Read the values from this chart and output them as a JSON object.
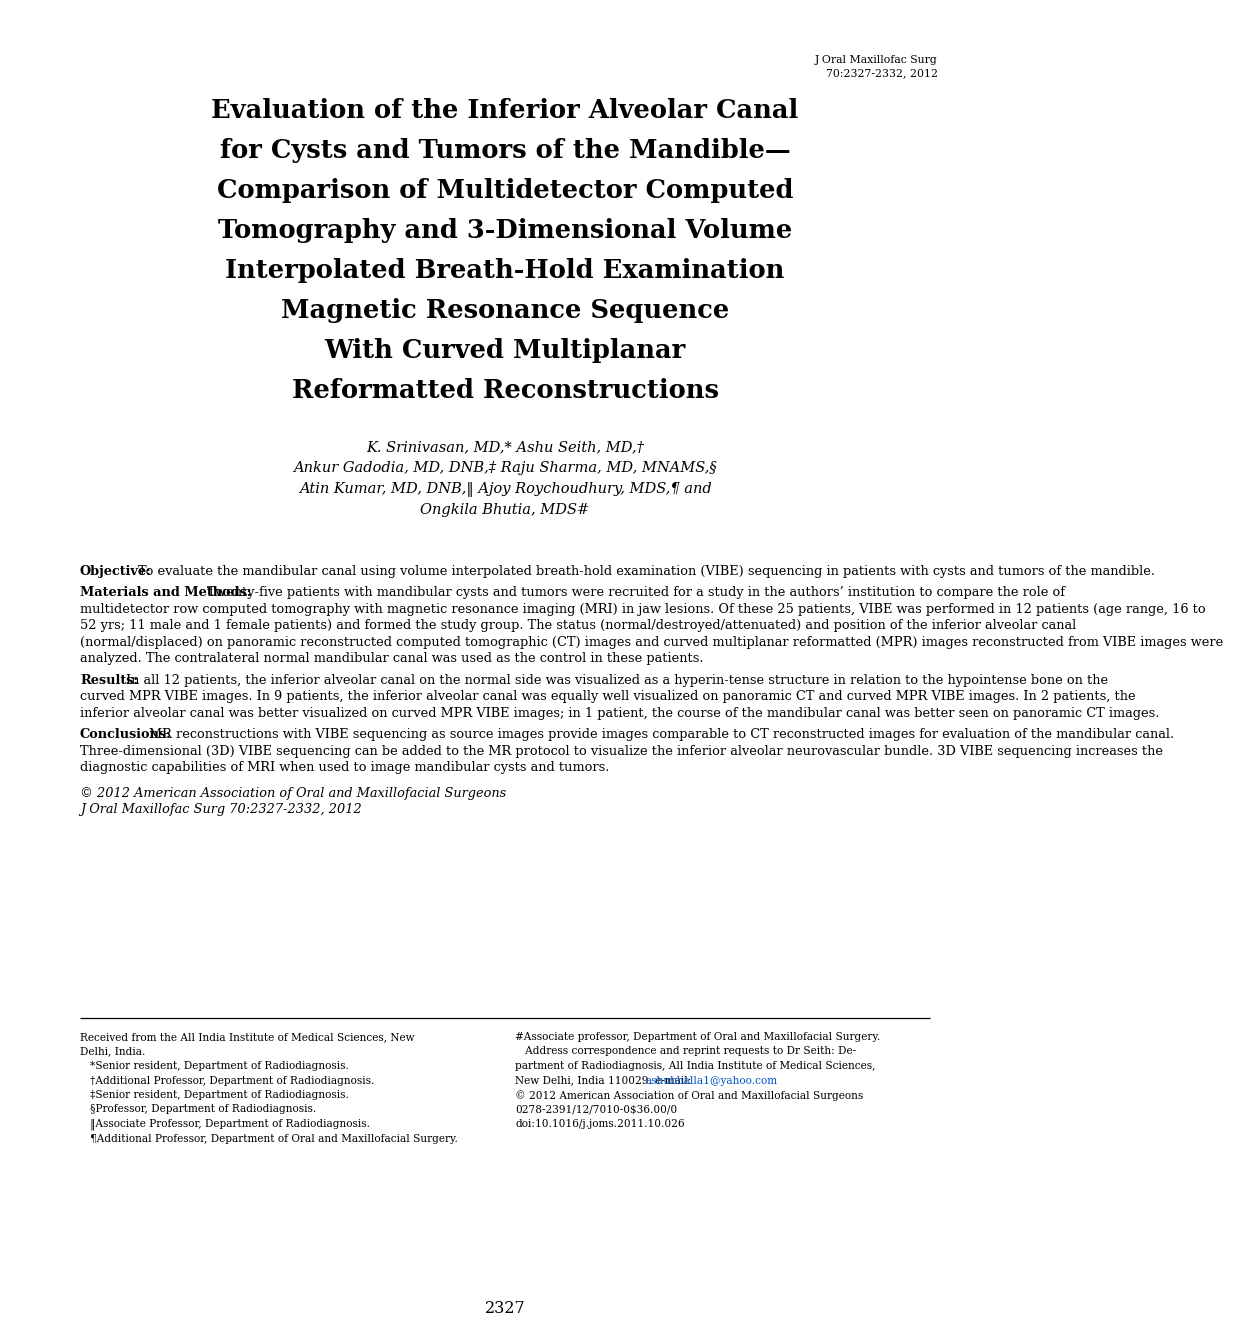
{
  "journal_ref_line1": "J Oral Maxillofac Surg",
  "journal_ref_line2": "70:2327-2332, 2012",
  "title_lines": [
    "Evaluation of the Inferior Alveolar Canal",
    "for Cysts and Tumors of the Mandible—",
    "Comparison of Multidetector Computed",
    "Tomography and 3-Dimensional Volume",
    "Interpolated Breath-Hold Examination",
    "Magnetic Resonance Sequence",
    "With Curved Multiplanar",
    "Reformatted Reconstructions"
  ],
  "authors_lines": [
    "K. Srinivasan, MD,* Ashu Seith, MD,†",
    "Ankur Gadodia, MD, DNB,‡ Raju Sharma, MD, MNAMS,§",
    "Atin Kumar, MD, DNB,‖ Ajoy Roychoudhury, MDS,¶ and",
    "Ongkila Bhutia, MDS#"
  ],
  "objective_bold": "Objective:",
  "objective_text": "  To evaluate the mandibular canal using volume interpolated breath-hold examination (VIBE) sequencing in patients with cysts and tumors of the mandible.",
  "mm_bold": "Materials and Methods:",
  "mm_text": "   Twenty-five patients with mandibular cysts and tumors were recruited for a study in the authors’ institution to compare the role of multidetector row computed tomography with magnetic resonance imaging (MRI) in jaw lesions. Of these 25 patients, VIBE was performed in 12 patients (age range, 16 to 52 yrs; 11 male and 1 female patients) and formed the study group. The status (normal/destroyed/attenuated) and position of the inferior alveolar canal (normal/displaced) on panoramic reconstructed computed tomographic (CT) images and curved multiplanar reformatted (MPR) images reconstructed from VIBE images were analyzed. The contralateral normal mandibular canal was used as the control in these patients.",
  "results_bold": "Results:",
  "results_text": "  In all 12 patients, the inferior alveolar canal on the normal side was visualized as a hyperin-tense structure in relation to the hypointense bone on the curved MPR VIBE images. In 9 patients, the inferior alveolar canal was equally well visualized on panoramic CT and curved MPR VIBE images. In 2 patients, the inferior alveolar canal was better visualized on curved MPR VIBE images; in 1 patient, the course of the mandibular canal was better seen on panoramic CT images.",
  "conclusions_bold": "Conclusions:",
  "conclusions_text": "  MR reconstructions with VIBE sequencing as source images provide images comparable to CT reconstructed images for evaluation of the mandibular canal. Three-dimensional (3D) VIBE sequencing can be added to the MR protocol to visualize the inferior alveolar neurovascular bundle. 3D VIBE sequencing increases the diagnostic capabilities of MRI when used to image mandibular cysts and tumors.",
  "copyright_line": "© 2012 American Association of Oral and Maxillofacial Surgeons",
  "journal_cite": "J Oral Maxillofac Surg 70:2327-2332, 2012",
  "fn_left": [
    "Received from the All India Institute of Medical Sciences, New",
    "Delhi, India.",
    "   *Senior resident, Department of Radiodiagnosis.",
    "   †Additional Professor, Department of Radiodiagnosis.",
    "   ‡Senior resident, Department of Radiodiagnosis.",
    "   §Professor, Department of Radiodiagnosis.",
    "   ‖Associate Professor, Department of Radiodiagnosis.",
    "   ¶Additional Professor, Department of Oral and Maxillofacial Surgery."
  ],
  "fn_right_pre_email": [
    "#Associate professor, Department of Oral and Maxillofacial Surgery.",
    "   Address correspondence and reprint requests to Dr Seith: De-",
    "partment of Radiodiagnosis, All India Institute of Medical Sciences,",
    "New Delhi, India 110029. e-mail: "
  ],
  "email": "ashubhalla1@yahoo.com",
  "fn_right_post": [
    "© 2012 American Association of Oral and Maxillofacial Surgeons",
    "0278-2391/12/7010-0$36.00/0",
    "doi:10.1016/j.joms.2011.10.026"
  ],
  "page_number": "2327",
  "bg_color": "#ffffff"
}
